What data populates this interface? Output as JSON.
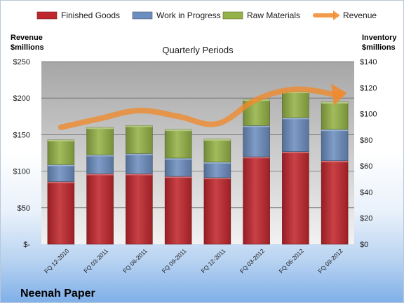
{
  "chart_data": {
    "type": "bar",
    "stacked": true,
    "title": "Quarterly Periods",
    "company": "Neenah Paper",
    "left_axis_title": [
      "Revenue",
      "$millions"
    ],
    "right_axis_title": [
      "Inventory",
      "$millions"
    ],
    "left_ticks": [
      "$-",
      "$50",
      "$100",
      "$150",
      "$200",
      "$250"
    ],
    "right_ticks": [
      "$0",
      "$20",
      "$40",
      "$60",
      "$80",
      "$100",
      "$120",
      "$140"
    ],
    "left_ylim": [
      0,
      250
    ],
    "right_ylim": [
      0,
      140
    ],
    "categories": [
      "FQ 12-2010",
      "FQ 03-2011",
      "FQ 06-2011",
      "FQ 09-2011",
      "FQ 12-2011",
      "FQ 03-2012",
      "FQ 06-2012",
      "FQ 09-2012"
    ],
    "series": [
      {
        "name": "Finished Goods",
        "color": "#c0272d",
        "axis": "right",
        "values": [
          48,
          54,
          54,
          52,
          51,
          67,
          71,
          64
        ]
      },
      {
        "name": "Work in Progress",
        "color": "#6c8ebf",
        "axis": "right",
        "values": [
          13,
          14.5,
          15.5,
          14,
          12,
          24,
          26,
          24
        ]
      },
      {
        "name": "Raw Materials",
        "color": "#94b247",
        "axis": "right",
        "values": [
          19,
          21,
          21.5,
          22,
          17.5,
          20,
          20,
          21
        ]
      },
      {
        "name": "Revenue",
        "color": "#f08a2b",
        "axis": "left",
        "type": "line",
        "values": [
          160,
          172,
          183,
          175,
          165,
          198,
          212,
          205
        ]
      }
    ],
    "legend_position": "top",
    "grid": true
  }
}
